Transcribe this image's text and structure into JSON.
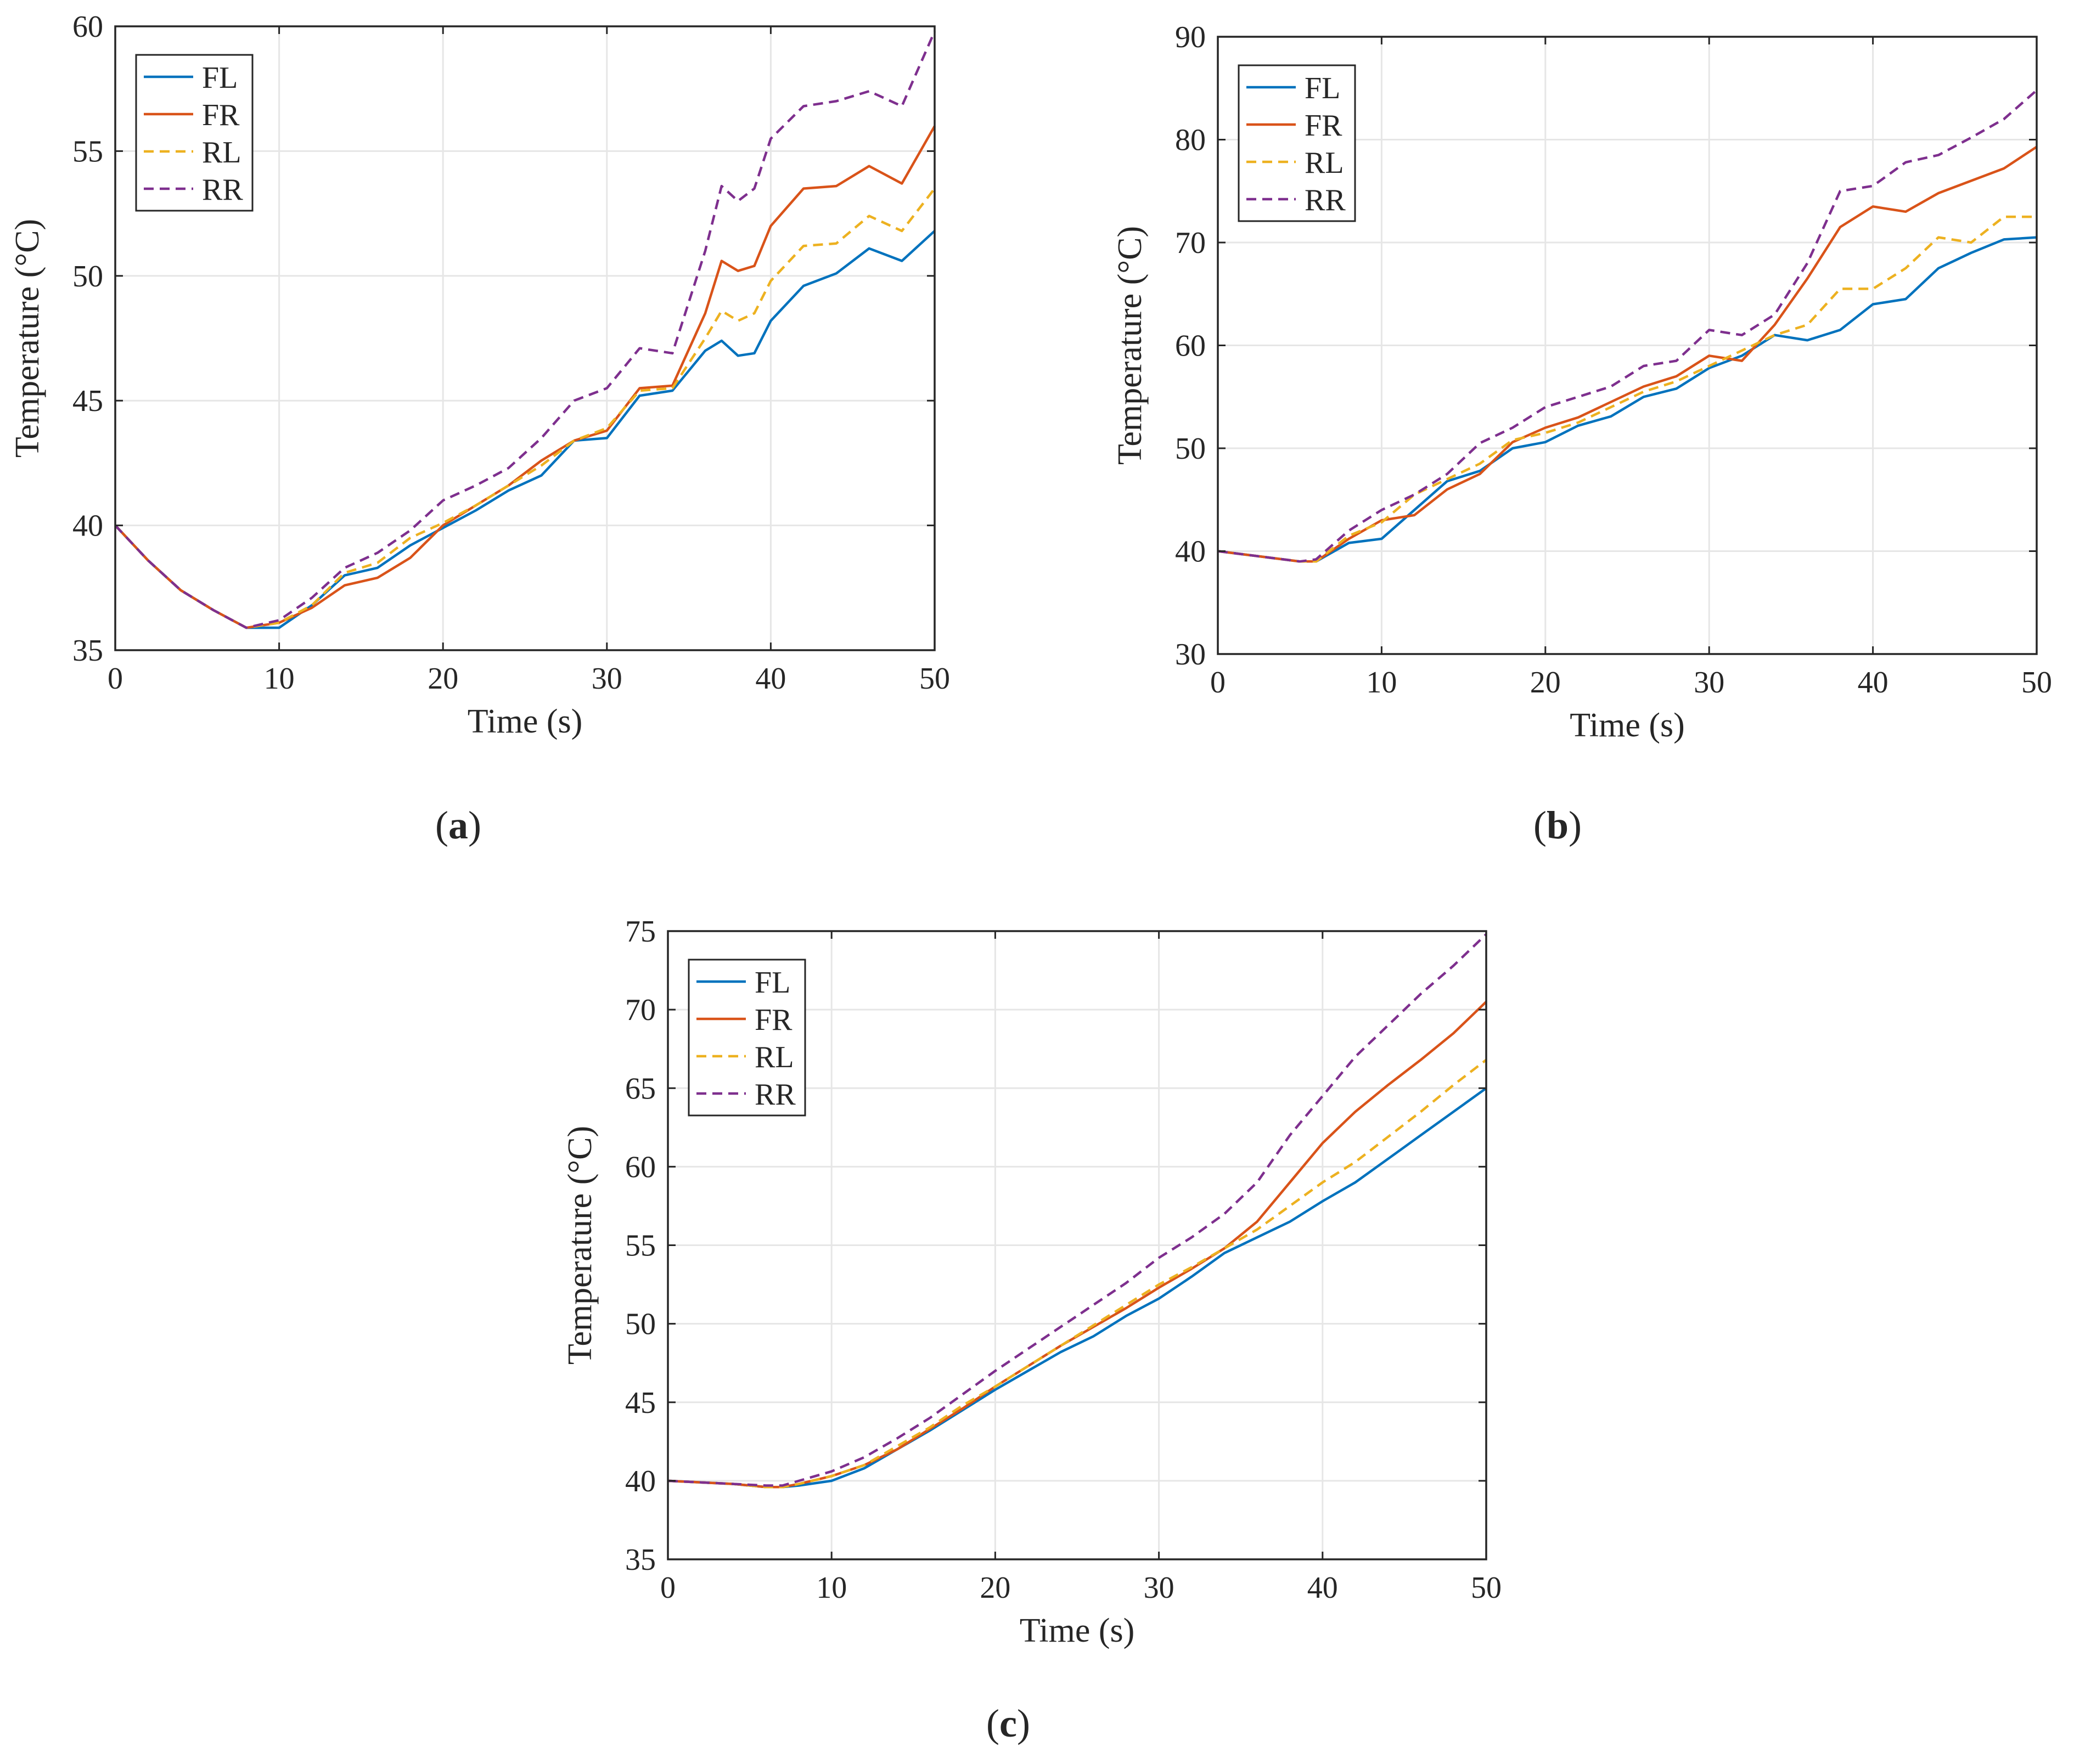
{
  "colors": {
    "FL": "#0072BD",
    "FR": "#D95319",
    "RL": "#EDB120",
    "RR": "#7E2F8E",
    "grid": "#e6e6e6",
    "axis": "#262626"
  },
  "chart_data": [
    {
      "type": "line",
      "panel_label": "a",
      "panel_label_text": "(a)",
      "xlabel": "Time (s)",
      "ylabel": "Temperature (°C)",
      "xlim": [
        0,
        50
      ],
      "ylim": [
        35,
        60
      ],
      "xticks": [
        0,
        10,
        20,
        30,
        40,
        50
      ],
      "yticks": [
        35,
        40,
        45,
        50,
        55,
        60
      ],
      "grid": true,
      "legend_position": "top-left",
      "x": [
        0,
        2,
        4,
        6,
        8,
        10,
        12,
        14,
        16,
        18,
        20,
        22,
        24,
        26,
        28,
        30,
        32,
        34,
        36,
        37,
        38,
        39,
        40,
        42,
        44,
        46,
        48,
        50
      ],
      "series": [
        {
          "name": "FL",
          "style": "solid",
          "values": [
            40,
            38.6,
            37.4,
            36.6,
            35.9,
            35.9,
            36.8,
            38.0,
            38.3,
            39.2,
            39.9,
            40.6,
            41.4,
            42.0,
            43.4,
            43.5,
            45.2,
            45.4,
            47.0,
            47.4,
            46.8,
            46.9,
            48.2,
            49.6,
            50.1,
            51.1,
            50.6,
            51.8
          ]
        },
        {
          "name": "FR",
          "style": "solid",
          "values": [
            40,
            38.6,
            37.4,
            36.6,
            35.9,
            36.1,
            36.7,
            37.6,
            37.9,
            38.7,
            40.0,
            40.8,
            41.6,
            42.6,
            43.4,
            43.8,
            45.5,
            45.6,
            48.5,
            50.6,
            50.2,
            50.4,
            52.0,
            53.5,
            53.6,
            54.4,
            53.7,
            56.0
          ]
        },
        {
          "name": "RL",
          "style": "dashed",
          "values": [
            40,
            38.6,
            37.4,
            36.6,
            35.9,
            36.1,
            36.8,
            38.1,
            38.5,
            39.5,
            40.1,
            40.8,
            41.6,
            42.4,
            43.4,
            43.9,
            45.4,
            45.5,
            47.5,
            48.6,
            48.2,
            48.5,
            49.8,
            51.2,
            51.3,
            52.4,
            51.8,
            53.5
          ]
        },
        {
          "name": "RR",
          "style": "dashed",
          "values": [
            40,
            38.6,
            37.4,
            36.6,
            35.9,
            36.2,
            37.1,
            38.3,
            38.9,
            39.8,
            41.0,
            41.6,
            42.3,
            43.5,
            45.0,
            45.5,
            47.1,
            46.9,
            51.0,
            53.6,
            53.0,
            53.5,
            55.5,
            56.8,
            57.0,
            57.4,
            56.8,
            59.8
          ]
        }
      ]
    },
    {
      "type": "line",
      "panel_label": "b",
      "panel_label_text": "(b)",
      "xlabel": "Time (s)",
      "ylabel": "Temperature (°C)",
      "xlim": [
        0,
        50
      ],
      "ylim": [
        30,
        90
      ],
      "xticks": [
        0,
        10,
        20,
        30,
        40,
        50
      ],
      "yticks": [
        30,
        40,
        50,
        60,
        70,
        80,
        90
      ],
      "grid": true,
      "legend_position": "top-left",
      "x": [
        0,
        2,
        4,
        5,
        6,
        8,
        10,
        12,
        14,
        16,
        18,
        20,
        22,
        24,
        26,
        28,
        30,
        32,
        34,
        36,
        38,
        40,
        42,
        44,
        46,
        48,
        50
      ],
      "series": [
        {
          "name": "FL",
          "style": "solid",
          "values": [
            40,
            39.6,
            39.2,
            39.0,
            39.0,
            40.8,
            41.2,
            44.0,
            46.8,
            47.8,
            50.0,
            50.6,
            52.2,
            53.1,
            55.0,
            55.8,
            57.8,
            59.0,
            61.0,
            60.5,
            61.5,
            64.0,
            64.5,
            67.5,
            69.0,
            70.3,
            70.5
          ]
        },
        {
          "name": "FR",
          "style": "solid",
          "values": [
            40,
            39.6,
            39.2,
            39.0,
            39.0,
            41.2,
            43.0,
            43.5,
            46.0,
            47.5,
            50.6,
            52.0,
            53.0,
            54.5,
            56.0,
            57.0,
            59.0,
            58.5,
            62.0,
            66.5,
            71.5,
            73.5,
            73.0,
            74.8,
            76.0,
            77.2,
            79.3
          ]
        },
        {
          "name": "RL",
          "style": "dashed",
          "values": [
            40,
            39.6,
            39.2,
            39.0,
            39.0,
            41.5,
            42.8,
            45.5,
            47.0,
            48.5,
            50.8,
            51.5,
            52.5,
            54.0,
            55.5,
            56.5,
            58.0,
            59.5,
            61.0,
            62.0,
            65.5,
            65.5,
            67.5,
            70.5,
            70.0,
            72.5,
            72.5
          ]
        },
        {
          "name": "RR",
          "style": "dashed",
          "values": [
            40,
            39.6,
            39.2,
            39.0,
            39.2,
            42.0,
            44.0,
            45.5,
            47.5,
            50.5,
            52.0,
            54.0,
            55.0,
            56.0,
            58.0,
            58.5,
            61.5,
            61.0,
            63.0,
            68.0,
            75.0,
            75.5,
            77.8,
            78.5,
            80.2,
            82.0,
            84.8
          ]
        }
      ]
    },
    {
      "type": "line",
      "panel_label": "c",
      "panel_label_text": "(c)",
      "xlabel": "Time (s)",
      "ylabel": "Temperature (°C)",
      "xlim": [
        0,
        50
      ],
      "ylim": [
        35,
        75
      ],
      "xticks": [
        0,
        10,
        20,
        30,
        40,
        50
      ],
      "yticks": [
        35,
        40,
        45,
        50,
        55,
        60,
        65,
        70,
        75
      ],
      "grid": true,
      "legend_position": "top-left",
      "x": [
        0,
        2,
        4,
        6,
        7,
        8,
        10,
        12,
        14,
        16,
        18,
        20,
        22,
        24,
        26,
        28,
        30,
        32,
        34,
        36,
        38,
        40,
        42,
        44,
        46,
        48,
        50
      ],
      "series": [
        {
          "name": "FL",
          "style": "solid",
          "values": [
            40,
            39.9,
            39.8,
            39.6,
            39.6,
            39.7,
            40.0,
            40.8,
            42.0,
            43.2,
            44.5,
            45.8,
            47.0,
            48.2,
            49.2,
            50.5,
            51.6,
            53.0,
            54.5,
            55.5,
            56.5,
            57.8,
            59.0,
            60.5,
            62.0,
            63.5,
            65.0
          ]
        },
        {
          "name": "FR",
          "style": "solid",
          "values": [
            40,
            39.9,
            39.8,
            39.6,
            39.6,
            39.8,
            40.3,
            41.0,
            42.0,
            43.3,
            44.6,
            46.0,
            47.3,
            48.6,
            49.8,
            51.0,
            52.3,
            53.5,
            54.8,
            56.5,
            59.0,
            61.5,
            63.5,
            65.2,
            66.8,
            68.5,
            70.5
          ]
        },
        {
          "name": "RL",
          "style": "dashed",
          "values": [
            40,
            39.9,
            39.8,
            39.6,
            39.6,
            39.8,
            40.3,
            41.0,
            42.2,
            43.4,
            44.8,
            46.0,
            47.3,
            48.6,
            49.9,
            51.2,
            52.5,
            53.6,
            54.8,
            56.0,
            57.5,
            59.0,
            60.3,
            61.9,
            63.5,
            65.2,
            66.8
          ]
        },
        {
          "name": "RR",
          "style": "dashed",
          "values": [
            40,
            39.9,
            39.8,
            39.7,
            39.7,
            40.0,
            40.6,
            41.5,
            42.7,
            44.0,
            45.5,
            47.0,
            48.4,
            49.8,
            51.2,
            52.6,
            54.2,
            55.5,
            57.0,
            59.0,
            62.0,
            64.5,
            67.0,
            69.0,
            71.0,
            72.8,
            74.8
          ]
        }
      ]
    }
  ]
}
